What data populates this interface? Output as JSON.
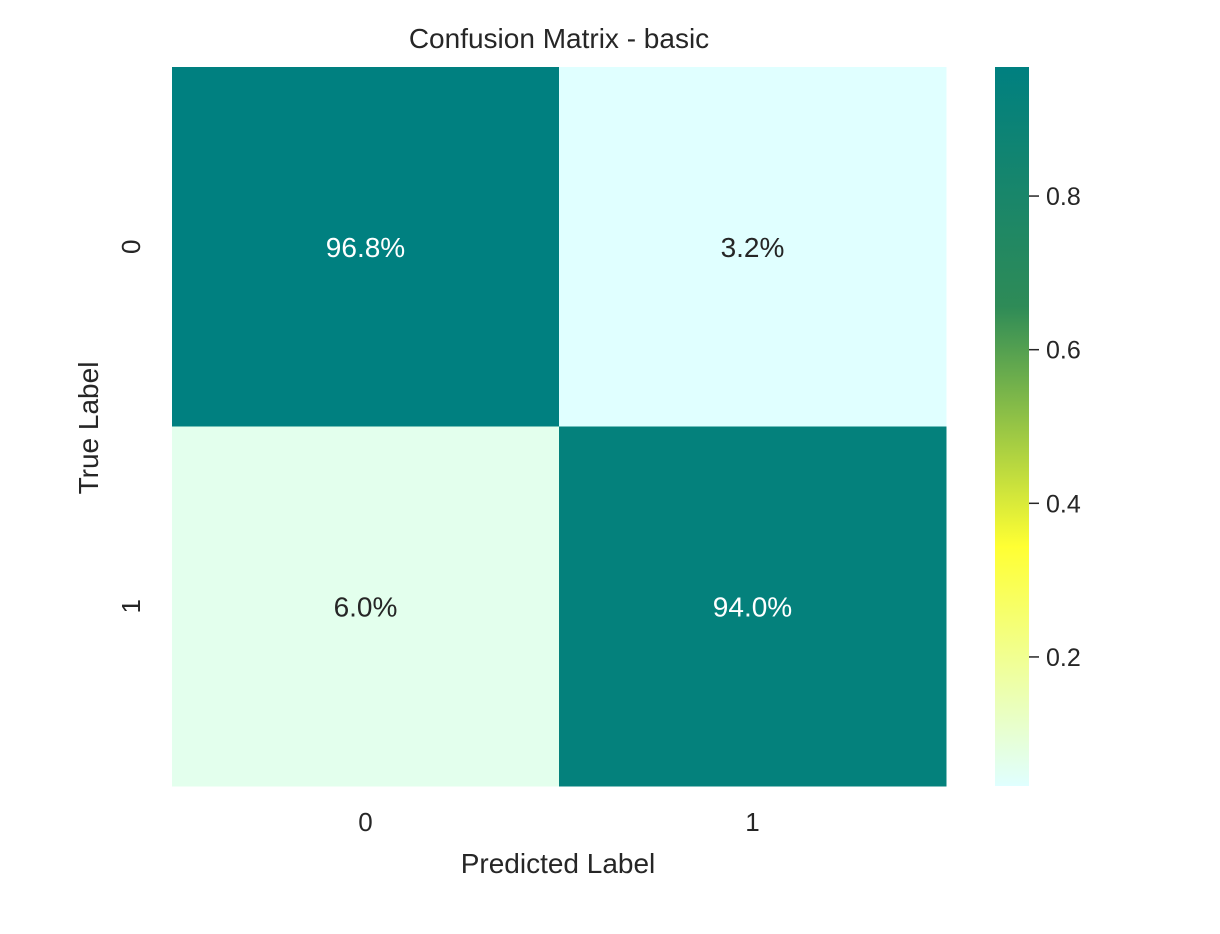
{
  "chart_data": {
    "type": "heatmap",
    "title": "Confusion Matrix - basic",
    "xlabel": "Predicted Label",
    "ylabel": "True Label",
    "x_categories": [
      "0",
      "1"
    ],
    "y_categories": [
      "0",
      "1"
    ],
    "values": [
      [
        0.968,
        0.032
      ],
      [
        0.06,
        0.94
      ]
    ],
    "cell_labels": [
      [
        "96.8%",
        "3.2%"
      ],
      [
        "6.0%",
        "94.0%"
      ]
    ],
    "colorbar": {
      "vmin": 0.032,
      "vmax": 0.968,
      "ticks": [
        0.2,
        0.4,
        0.6,
        0.8
      ],
      "tick_labels": [
        "0.2",
        "0.4",
        "0.6",
        "0.8"
      ],
      "colormap": [
        "#e0ffff",
        "#ffff33",
        "#2e8b57",
        "#008080"
      ]
    },
    "grid": false,
    "legend": "colorbar-right"
  }
}
